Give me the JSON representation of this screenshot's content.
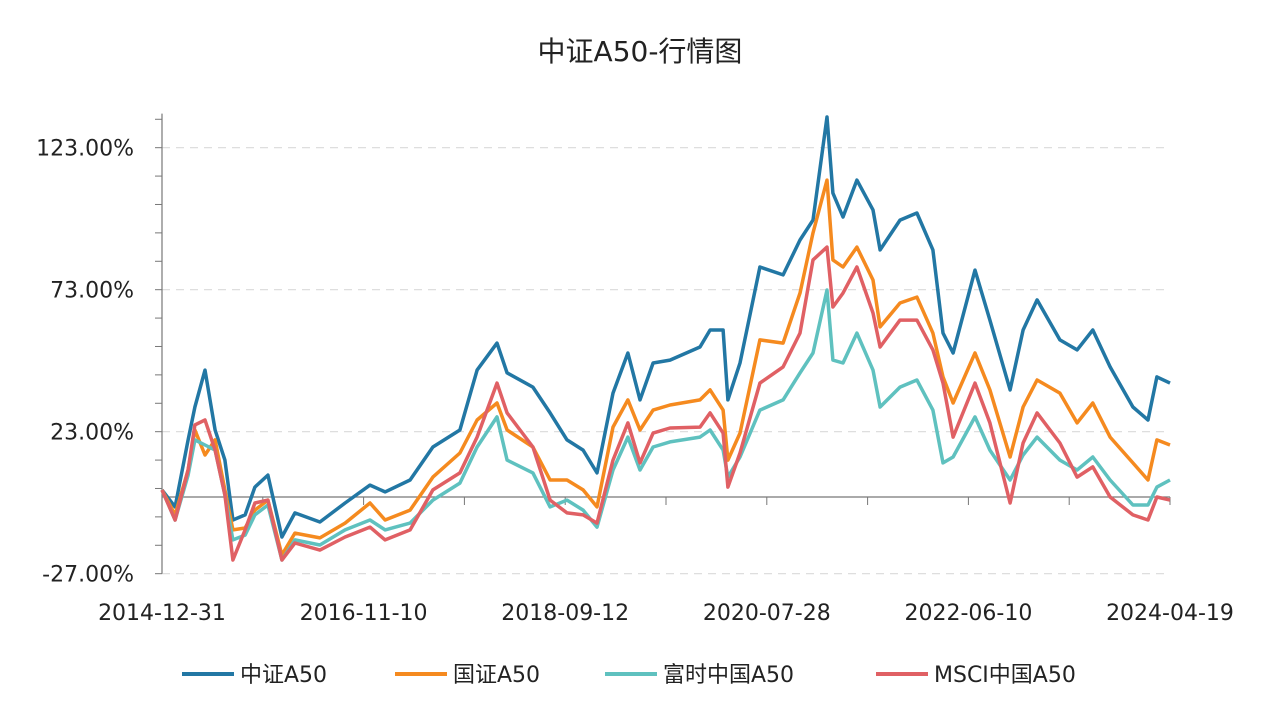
{
  "chart_data": {
    "type": "line",
    "title": "中证A50-行情图",
    "xlabel": "",
    "ylabel": "",
    "y_unit": "%",
    "ylim": [
      -27,
      135
    ],
    "yticks": [
      123,
      73,
      23,
      -27
    ],
    "ytick_labels": [
      "123.00%",
      "73.00%",
      "23.00%",
      "-27.00%"
    ],
    "xlim": [
      "2014-12-31",
      "2024-04-19"
    ],
    "xtick_labels": [
      "2014-12-31",
      "2016-11-10",
      "2018-09-12",
      "2020-07-28",
      "2022-06-10",
      "2024-04-19"
    ],
    "grid": "horizontal dashed",
    "legend_position": "bottom",
    "x": [
      "2014-12-31",
      "2015-02-13",
      "2015-03-29",
      "2015-04-21",
      "2015-05-25",
      "2015-06-28",
      "2015-07-31",
      "2015-08-27",
      "2015-10-07",
      "2015-11-09",
      "2015-12-23",
      "2016-02-08",
      "2016-03-23",
      "2016-06-15",
      "2016-09-08",
      "2016-12-01",
      "2017-01-21",
      "2017-04-15",
      "2017-07-01",
      "2017-09-30",
      "2017-11-27",
      "2018-02-02",
      "2018-03-08",
      "2018-06-03",
      "2018-07-31",
      "2018-09-26",
      "2018-11-19",
      "2019-01-05",
      "2019-02-28",
      "2019-04-19",
      "2019-05-30",
      "2019-07-13",
      "2019-09-08",
      "2019-12-18",
      "2020-01-21",
      "2020-03-05",
      "2020-03-21",
      "2020-05-01",
      "2020-07-07",
      "2020-09-23",
      "2020-11-19",
      "2021-01-02",
      "2021-02-18",
      "2021-03-10",
      "2021-04-13",
      "2021-05-30",
      "2021-07-23",
      "2021-08-16",
      "2021-10-22",
      "2021-12-18",
      "2022-02-10",
      "2022-03-16",
      "2022-04-19",
      "2022-07-02",
      "2022-08-21",
      "2022-10-28",
      "2022-12-11",
      "2023-01-27",
      "2023-04-14",
      "2023-06-11",
      "2023-08-03",
      "2023-09-30",
      "2023-12-16",
      "2024-02-05",
      "2024-03-06",
      "2024-04-19"
    ],
    "series": [
      {
        "name": "中证A50",
        "color": "#2277a4",
        "values": [
          2.5,
          -3.5,
          20.1,
          31.7,
          44.7,
          23.6,
          13.0,
          -8.1,
          -6.3,
          3.5,
          7.7,
          -14.1,
          -5.6,
          -8.8,
          -2.1,
          4.2,
          1.8,
          6.0,
          17.6,
          23.6,
          44.7,
          54.2,
          43.7,
          38.7,
          29.6,
          20.1,
          16.5,
          8.5,
          36.6,
          50.7,
          34.2,
          47.2,
          48.2,
          52.8,
          58.8,
          58.8,
          34.2,
          47.2,
          81.0,
          78.2,
          90.5,
          97.5,
          133.8,
          107.0,
          98.6,
          111.6,
          101.1,
          87.0,
          97.5,
          100.0,
          87.0,
          57.7,
          50.7,
          79.9,
          62.3,
          37.7,
          58.8,
          69.4,
          55.3,
          51.8,
          58.8,
          45.8,
          31.7,
          27.1,
          42.3,
          40.1
        ]
      },
      {
        "name": "国证A50",
        "color": "#f58a1f",
        "values": [
          2.5,
          -6.3,
          9.5,
          23.6,
          14.8,
          20.1,
          2.5,
          -11.6,
          -10.9,
          -4.6,
          -1.1,
          -20.4,
          -12.7,
          -14.4,
          -9.2,
          -2.1,
          -8.1,
          -4.6,
          7.0,
          15.5,
          27.1,
          33.1,
          23.6,
          17.6,
          6.0,
          6.0,
          2.5,
          -3.5,
          24.6,
          34.2,
          23.6,
          30.6,
          32.4,
          34.2,
          37.7,
          30.6,
          13.0,
          22.5,
          55.3,
          54.2,
          71.8,
          93.0,
          111.6,
          83.5,
          81.0,
          88.0,
          76.4,
          59.9,
          68.3,
          70.4,
          57.7,
          42.3,
          33.1,
          50.7,
          37.7,
          14.1,
          31.7,
          41.2,
          36.6,
          26.1,
          33.1,
          21.1,
          12.0,
          6.0,
          20.1,
          18.3
        ]
      },
      {
        "name": "富时中国A50",
        "color": "#5fc1bf",
        "values": [
          2.5,
          -8.1,
          7.7,
          20.1,
          18.3,
          16.5,
          0.7,
          -15.1,
          -13.4,
          -6.3,
          -2.8,
          -22.2,
          -15.1,
          -16.9,
          -11.6,
          -8.1,
          -11.6,
          -9.2,
          -1.1,
          4.9,
          17.6,
          28.2,
          13.0,
          8.5,
          -3.5,
          -1.1,
          -4.6,
          -10.6,
          9.5,
          21.1,
          9.5,
          17.6,
          19.4,
          21.1,
          23.6,
          16.5,
          7.0,
          14.1,
          30.6,
          34.2,
          43.7,
          50.7,
          72.9,
          48.2,
          47.2,
          57.7,
          44.7,
          31.7,
          38.7,
          41.2,
          30.6,
          12.0,
          14.1,
          28.2,
          16.5,
          6.0,
          14.8,
          21.1,
          13.0,
          9.5,
          14.1,
          6.0,
          -2.8,
          -2.8,
          3.5,
          6.0
        ]
      },
      {
        "name": "MSCI中国A50",
        "color": "#e06064",
        "values": [
          2.5,
          -8.1,
          9.5,
          25.4,
          27.1,
          16.5,
          0.7,
          -22.2,
          -11.6,
          -2.1,
          -1.1,
          -22.2,
          -16.2,
          -18.7,
          -14.1,
          -10.6,
          -15.1,
          -11.6,
          2.5,
          8.5,
          21.1,
          40.1,
          29.6,
          17.6,
          -1.1,
          -5.6,
          -6.3,
          -9.2,
          13.0,
          26.1,
          12.0,
          22.5,
          24.3,
          24.6,
          29.6,
          22.5,
          3.5,
          15.5,
          40.1,
          45.8,
          57.7,
          83.5,
          88.0,
          66.9,
          71.8,
          81.0,
          64.8,
          52.8,
          62.3,
          62.3,
          51.8,
          40.1,
          21.1,
          40.1,
          26.1,
          -2.1,
          19.0,
          29.6,
          19.0,
          7.0,
          10.6,
          0.0,
          -6.3,
          -8.1,
          0.0,
          -1.1
        ]
      }
    ]
  }
}
